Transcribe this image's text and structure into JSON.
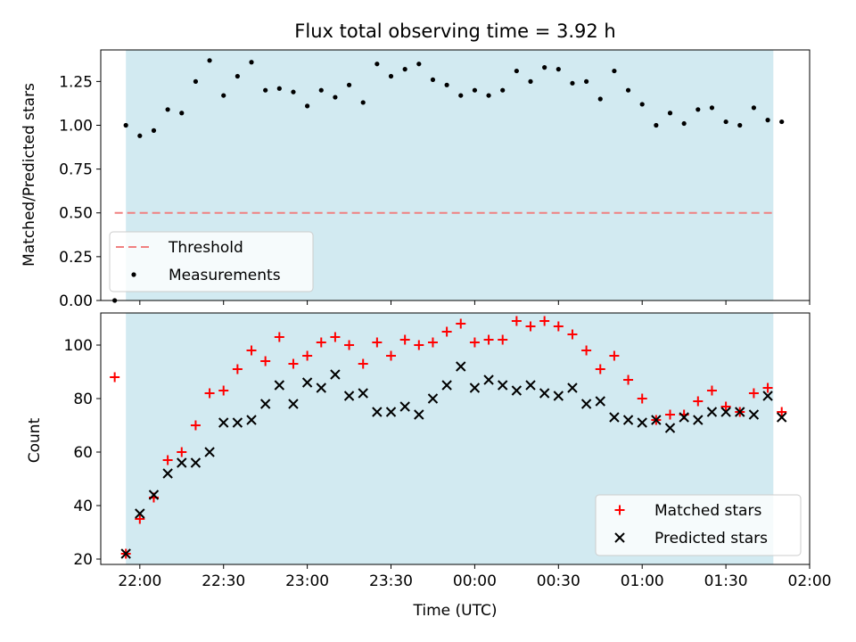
{
  "chart_data": [
    {
      "type": "scatter",
      "title": "Flux total observing time = 3.92 h",
      "ylabel": "Matched/Predicted stars",
      "xlabel": "",
      "ylim": [
        0,
        1.43
      ],
      "xlim": [
        "21:46",
        "02:00"
      ],
      "yticks": [
        "0.00",
        "0.25",
        "0.50",
        "0.75",
        "1.00",
        "1.25"
      ],
      "shaded_span": [
        "21:55",
        "01:47"
      ],
      "shade_color": "#add8e6",
      "legend_position": "lower-left",
      "threshold": {
        "name": "Threshold",
        "value": 0.5,
        "x_start": "21:51",
        "x_end": "01:47",
        "color": "#f08080",
        "style": "dashed"
      },
      "series": [
        {
          "name": "Measurements",
          "color": "#000000",
          "marker": "dot",
          "points": [
            [
              "21:51",
              0.0
            ],
            [
              "21:55",
              1.0
            ],
            [
              "22:00",
              0.94
            ],
            [
              "22:05",
              0.97
            ],
            [
              "22:10",
              1.09
            ],
            [
              "22:15",
              1.07
            ],
            [
              "22:20",
              1.25
            ],
            [
              "22:25",
              1.37
            ],
            [
              "22:30",
              1.17
            ],
            [
              "22:35",
              1.28
            ],
            [
              "22:40",
              1.36
            ],
            [
              "22:45",
              1.2
            ],
            [
              "22:50",
              1.21
            ],
            [
              "22:55",
              1.19
            ],
            [
              "23:00",
              1.11
            ],
            [
              "23:05",
              1.2
            ],
            [
              "23:10",
              1.16
            ],
            [
              "23:15",
              1.23
            ],
            [
              "23:20",
              1.13
            ],
            [
              "23:25",
              1.35
            ],
            [
              "23:30",
              1.28
            ],
            [
              "23:35",
              1.32
            ],
            [
              "23:40",
              1.35
            ],
            [
              "23:45",
              1.26
            ],
            [
              "23:50",
              1.23
            ],
            [
              "23:55",
              1.17
            ],
            [
              "00:00",
              1.2
            ],
            [
              "00:05",
              1.17
            ],
            [
              "00:10",
              1.2
            ],
            [
              "00:15",
              1.31
            ],
            [
              "00:20",
              1.25
            ],
            [
              "00:25",
              1.33
            ],
            [
              "00:30",
              1.32
            ],
            [
              "00:35",
              1.24
            ],
            [
              "00:40",
              1.25
            ],
            [
              "00:45",
              1.15
            ],
            [
              "00:50",
              1.31
            ],
            [
              "00:55",
              1.2
            ],
            [
              "01:00",
              1.12
            ],
            [
              "01:05",
              1.0
            ],
            [
              "01:10",
              1.07
            ],
            [
              "01:15",
              1.01
            ],
            [
              "01:20",
              1.09
            ],
            [
              "01:25",
              1.1
            ],
            [
              "01:30",
              1.02
            ],
            [
              "01:35",
              1.0
            ],
            [
              "01:40",
              1.1
            ],
            [
              "01:45",
              1.03
            ],
            [
              "01:50",
              1.02
            ]
          ]
        }
      ]
    },
    {
      "type": "scatter",
      "title": "",
      "xlabel": "Time (UTC)",
      "ylabel": "Count",
      "ylim": [
        18,
        112
      ],
      "xlim": [
        "21:46",
        "02:00"
      ],
      "yticks": [
        "20",
        "40",
        "60",
        "80",
        "100"
      ],
      "xticks": [
        "22:00",
        "22:30",
        "23:00",
        "23:30",
        "00:00",
        "00:30",
        "01:00",
        "01:30",
        "02:00"
      ],
      "shaded_span": [
        "21:55",
        "01:47"
      ],
      "shade_color": "#add8e6",
      "legend_position": "lower-right",
      "series": [
        {
          "name": "Matched stars",
          "color": "#ff0000",
          "marker": "plus",
          "points": [
            [
              "21:51",
              88
            ],
            [
              "21:55",
              22
            ],
            [
              "22:00",
              35
            ],
            [
              "22:05",
              43
            ],
            [
              "22:10",
              57
            ],
            [
              "22:15",
              60
            ],
            [
              "22:20",
              70
            ],
            [
              "22:25",
              82
            ],
            [
              "22:30",
              83
            ],
            [
              "22:35",
              91
            ],
            [
              "22:40",
              98
            ],
            [
              "22:45",
              94
            ],
            [
              "22:50",
              103
            ],
            [
              "22:55",
              93
            ],
            [
              "23:00",
              96
            ],
            [
              "23:05",
              101
            ],
            [
              "23:10",
              103
            ],
            [
              "23:15",
              100
            ],
            [
              "23:20",
              93
            ],
            [
              "23:25",
              101
            ],
            [
              "23:30",
              96
            ],
            [
              "23:35",
              102
            ],
            [
              "23:40",
              100
            ],
            [
              "23:45",
              101
            ],
            [
              "23:50",
              105
            ],
            [
              "23:55",
              108
            ],
            [
              "00:00",
              101
            ],
            [
              "00:05",
              102
            ],
            [
              "00:10",
              102
            ],
            [
              "00:15",
              109
            ],
            [
              "00:20",
              107
            ],
            [
              "00:25",
              109
            ],
            [
              "00:30",
              107
            ],
            [
              "00:35",
              104
            ],
            [
              "00:40",
              98
            ],
            [
              "00:45",
              91
            ],
            [
              "00:50",
              96
            ],
            [
              "00:55",
              87
            ],
            [
              "01:00",
              80
            ],
            [
              "01:05",
              72
            ],
            [
              "01:10",
              74
            ],
            [
              "01:15",
              74
            ],
            [
              "01:20",
              79
            ],
            [
              "01:25",
              83
            ],
            [
              "01:30",
              77
            ],
            [
              "01:35",
              75
            ],
            [
              "01:40",
              82
            ],
            [
              "01:45",
              84
            ],
            [
              "01:50",
              75
            ]
          ]
        },
        {
          "name": "Predicted stars",
          "color": "#000000",
          "marker": "x",
          "points": [
            [
              "21:55",
              22
            ],
            [
              "22:00",
              37
            ],
            [
              "22:05",
              44
            ],
            [
              "22:10",
              52
            ],
            [
              "22:15",
              56
            ],
            [
              "22:20",
              56
            ],
            [
              "22:25",
              60
            ],
            [
              "22:30",
              71
            ],
            [
              "22:35",
              71
            ],
            [
              "22:40",
              72
            ],
            [
              "22:45",
              78
            ],
            [
              "22:50",
              85
            ],
            [
              "22:55",
              78
            ],
            [
              "23:00",
              86
            ],
            [
              "23:05",
              84
            ],
            [
              "23:10",
              89
            ],
            [
              "23:15",
              81
            ],
            [
              "23:20",
              82
            ],
            [
              "23:25",
              75
            ],
            [
              "23:30",
              75
            ],
            [
              "23:35",
              77
            ],
            [
              "23:40",
              74
            ],
            [
              "23:45",
              80
            ],
            [
              "23:50",
              85
            ],
            [
              "23:55",
              92
            ],
            [
              "00:00",
              84
            ],
            [
              "00:05",
              87
            ],
            [
              "00:10",
              85
            ],
            [
              "00:15",
              83
            ],
            [
              "00:20",
              85
            ],
            [
              "00:25",
              82
            ],
            [
              "00:30",
              81
            ],
            [
              "00:35",
              84
            ],
            [
              "00:40",
              78
            ],
            [
              "00:45",
              79
            ],
            [
              "00:50",
              73
            ],
            [
              "00:55",
              72
            ],
            [
              "01:00",
              71
            ],
            [
              "01:05",
              72
            ],
            [
              "01:10",
              69
            ],
            [
              "01:15",
              73
            ],
            [
              "01:20",
              72
            ],
            [
              "01:25",
              75
            ],
            [
              "01:30",
              75
            ],
            [
              "01:35",
              75
            ],
            [
              "01:40",
              74
            ],
            [
              "01:45",
              81
            ],
            [
              "01:50",
              73
            ]
          ]
        }
      ]
    }
  ]
}
